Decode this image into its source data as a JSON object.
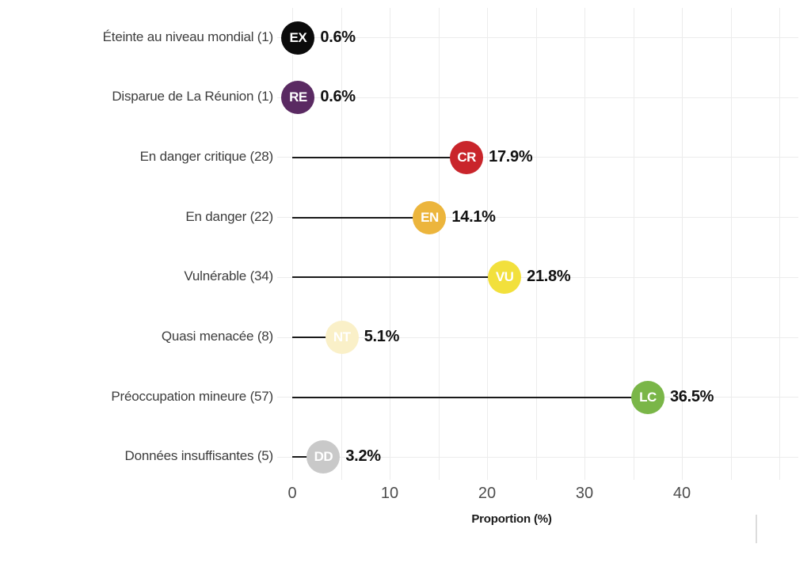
{
  "chart_data": {
    "type": "bar",
    "variant": "horizontal-lollipop",
    "title": "",
    "xlabel": "Proportion (%)",
    "ylabel": "",
    "xlim": [
      0,
      52
    ],
    "xticks": [
      0,
      10,
      20,
      30,
      40
    ],
    "minor_grid_step": 5,
    "grid": true,
    "legend": "none",
    "rows": [
      {
        "label": "Éteinte au niveau mondial (1)",
        "code": "EX",
        "count": 1,
        "value": 0.6,
        "value_label": "0.6%",
        "color": "#0b0b0b",
        "text_color": "#ffffff"
      },
      {
        "label": "Disparue de La Réunion (1)",
        "code": "RE",
        "count": 1,
        "value": 0.6,
        "value_label": "0.6%",
        "color": "#5a2a62",
        "text_color": "#ffffff"
      },
      {
        "label": "En danger critique (28)",
        "code": "CR",
        "count": 28,
        "value": 17.9,
        "value_label": "17.9%",
        "color": "#c9252b",
        "text_color": "#ffffff"
      },
      {
        "label": "En danger (22)",
        "code": "EN",
        "count": 22,
        "value": 14.1,
        "value_label": "14.1%",
        "color": "#ecb53c",
        "text_color": "#ffffff"
      },
      {
        "label": "Vulnérable (34)",
        "code": "VU",
        "count": 34,
        "value": 21.8,
        "value_label": "21.8%",
        "color": "#f2e03c",
        "text_color": "#ffffff"
      },
      {
        "label": "Quasi menacée (8)",
        "code": "NT",
        "count": 8,
        "value": 5.1,
        "value_label": "5.1%",
        "color": "#faf0c8",
        "text_color": "#ffffff"
      },
      {
        "label": "Préoccupation mineure (57)",
        "code": "LC",
        "count": 57,
        "value": 36.5,
        "value_label": "36.5%",
        "color": "#7ab648",
        "text_color": "#ffffff"
      },
      {
        "label": "Données insuffisantes (5)",
        "code": "DD",
        "count": 5,
        "value": 3.2,
        "value_label": "3.2%",
        "color": "#c9c9c9",
        "text_color": "#ffffff"
      }
    ]
  },
  "colors": {
    "background": "#ffffff",
    "grid": "#ececec",
    "stem": "#1a1a1a",
    "row_label": "#3d3d3d",
    "tick_label": "#4d4d4d",
    "value_label": "#111111"
  }
}
